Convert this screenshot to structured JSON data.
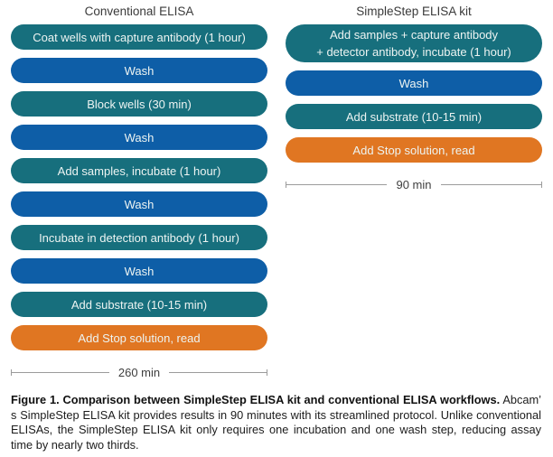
{
  "figure": {
    "columns": [
      {
        "title": "Conventional ELISA",
        "steps": [
          {
            "label": "Coat wells with capture antibody (1 hour)",
            "type": "incubation"
          },
          {
            "label": "Wash",
            "type": "wash"
          },
          {
            "label": "Block wells (30 min)",
            "type": "incubation"
          },
          {
            "label": "Wash",
            "type": "wash"
          },
          {
            "label": "Add samples, incubate (1 hour)",
            "type": "incubation"
          },
          {
            "label": "Wash",
            "type": "wash"
          },
          {
            "label": "Incubate in detection antibody (1 hour)",
            "type": "incubation"
          },
          {
            "label": "Wash",
            "type": "wash"
          },
          {
            "label": "Add substrate (10-15 min)",
            "type": "incubation"
          },
          {
            "label": "Add Stop solution, read",
            "type": "stop"
          }
        ],
        "duration": "260 min"
      },
      {
        "title": "SimpleStep ELISA kit",
        "steps": [
          {
            "label": "Add samples + capture antibody",
            "label2": "+ detector antibody, incubate (1 hour)",
            "type": "incubation"
          },
          {
            "label": "Wash",
            "type": "wash"
          },
          {
            "label": "Add substrate (10-15 min)",
            "type": "incubation"
          },
          {
            "label": "Add Stop solution, read",
            "type": "stop"
          }
        ],
        "duration": "90 min"
      }
    ],
    "colors": {
      "incubation_step": "#176f7d",
      "wash_step": "#0e5ea7",
      "stop_step": "#e07622",
      "pill_text": "#edf4f2",
      "measure_line": "#9b9b9b"
    }
  },
  "caption": {
    "bold": "Figure 1. Comparison between SimpleStep ELISA kit and conventional ELISA workflows.",
    "body": "Abcam’ s SimpleStep ELISA kit provides results in 90 minutes with its streamlined protocol. Unlike conventional ELISAs, the SimpleStep ELISA kit only requires one incubation and one wash step, reducing assay time by nearly two thirds."
  }
}
